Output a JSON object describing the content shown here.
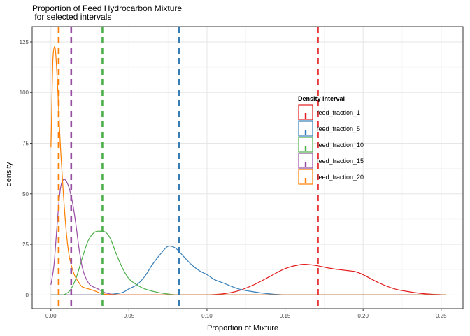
{
  "chart_data": {
    "type": "line",
    "title": "Proportion of Feed Hydrocarbon Mixture",
    "subtitle": " for selected intervals",
    "xlabel": "Proportion of Mixture",
    "ylabel": "density",
    "xlim": [
      -0.012,
      0.264
    ],
    "ylim": [
      -6.8,
      132.6
    ],
    "x_ticks": [
      0.0,
      0.05,
      0.1,
      0.15,
      0.2,
      0.25
    ],
    "x_tick_labels": [
      "0.00",
      "0.05",
      "0.10",
      "0.15",
      "0.20",
      "0.25"
    ],
    "y_ticks": [
      0,
      25,
      50,
      75,
      100,
      125
    ],
    "y_tick_labels": [
      "0",
      "25",
      "50",
      "75",
      "100",
      "125"
    ],
    "grid": true,
    "legend": {
      "title": "Density interval",
      "placement": "right-inside"
    },
    "series": [
      {
        "name": "feed_fraction_1",
        "color": "#E41A1C",
        "vline": 0.171,
        "points": [
          [
            0.1,
            0
          ],
          [
            0.11,
            0.5
          ],
          [
            0.12,
            2
          ],
          [
            0.13,
            5
          ],
          [
            0.14,
            9
          ],
          [
            0.15,
            13
          ],
          [
            0.16,
            15
          ],
          [
            0.165,
            15
          ],
          [
            0.17,
            14.5
          ],
          [
            0.18,
            13
          ],
          [
            0.19,
            12
          ],
          [
            0.195,
            11.5
          ],
          [
            0.2,
            10
          ],
          [
            0.21,
            6
          ],
          [
            0.22,
            3
          ],
          [
            0.23,
            1.5
          ],
          [
            0.24,
            0.5
          ],
          [
            0.253,
            0
          ]
        ]
      },
      {
        "name": "feed_fraction_5",
        "color": "#377EB8",
        "vline": 0.082,
        "points": [
          [
            0.035,
            0
          ],
          [
            0.045,
            1
          ],
          [
            0.05,
            3
          ],
          [
            0.055,
            5
          ],
          [
            0.06,
            9
          ],
          [
            0.065,
            15
          ],
          [
            0.07,
            20
          ],
          [
            0.075,
            24
          ],
          [
            0.08,
            23
          ],
          [
            0.085,
            19
          ],
          [
            0.09,
            15
          ],
          [
            0.095,
            12
          ],
          [
            0.1,
            10
          ],
          [
            0.105,
            7.5
          ],
          [
            0.11,
            6
          ],
          [
            0.12,
            3
          ],
          [
            0.13,
            1.5
          ],
          [
            0.14,
            0.5
          ],
          [
            0.15,
            0
          ]
        ]
      },
      {
        "name": "feed_fraction_10",
        "color": "#4DAF4A",
        "vline": 0.033,
        "points": [
          [
            0.008,
            0
          ],
          [
            0.012,
            2
          ],
          [
            0.016,
            8
          ],
          [
            0.02,
            18
          ],
          [
            0.024,
            27
          ],
          [
            0.028,
            31
          ],
          [
            0.032,
            31.5
          ],
          [
            0.035,
            31
          ],
          [
            0.038,
            28
          ],
          [
            0.042,
            20
          ],
          [
            0.046,
            13
          ],
          [
            0.05,
            8
          ],
          [
            0.055,
            5
          ],
          [
            0.06,
            3
          ],
          [
            0.07,
            1
          ],
          [
            0.08,
            0
          ]
        ]
      },
      {
        "name": "feed_fraction_15",
        "color": "#984EA3",
        "vline": 0.013,
        "points": [
          [
            0.0,
            5
          ],
          [
            0.002,
            15
          ],
          [
            0.004,
            35
          ],
          [
            0.006,
            52
          ],
          [
            0.008,
            57
          ],
          [
            0.01,
            56
          ],
          [
            0.012,
            52
          ],
          [
            0.014,
            45
          ],
          [
            0.016,
            35
          ],
          [
            0.018,
            23
          ],
          [
            0.02,
            14
          ],
          [
            0.022,
            9
          ],
          [
            0.025,
            5
          ],
          [
            0.03,
            3
          ],
          [
            0.035,
            1
          ],
          [
            0.04,
            0.2
          ],
          [
            0.045,
            0
          ]
        ]
      },
      {
        "name": "feed_fraction_20",
        "color": "#FF7F00",
        "vline": 0.005,
        "points": [
          [
            0.0,
            73
          ],
          [
            0.0005,
            90
          ],
          [
            0.0012,
            115
          ],
          [
            0.002,
            122
          ],
          [
            0.003,
            120
          ],
          [
            0.0045,
            100
          ],
          [
            0.006,
            75
          ],
          [
            0.008,
            50
          ],
          [
            0.01,
            30
          ],
          [
            0.012,
            18
          ],
          [
            0.015,
            10
          ],
          [
            0.018,
            6
          ],
          [
            0.02,
            4
          ],
          [
            0.024,
            3
          ],
          [
            0.028,
            2
          ],
          [
            0.032,
            0.8
          ],
          [
            0.036,
            0.2
          ],
          [
            0.045,
            0
          ]
        ]
      }
    ]
  }
}
